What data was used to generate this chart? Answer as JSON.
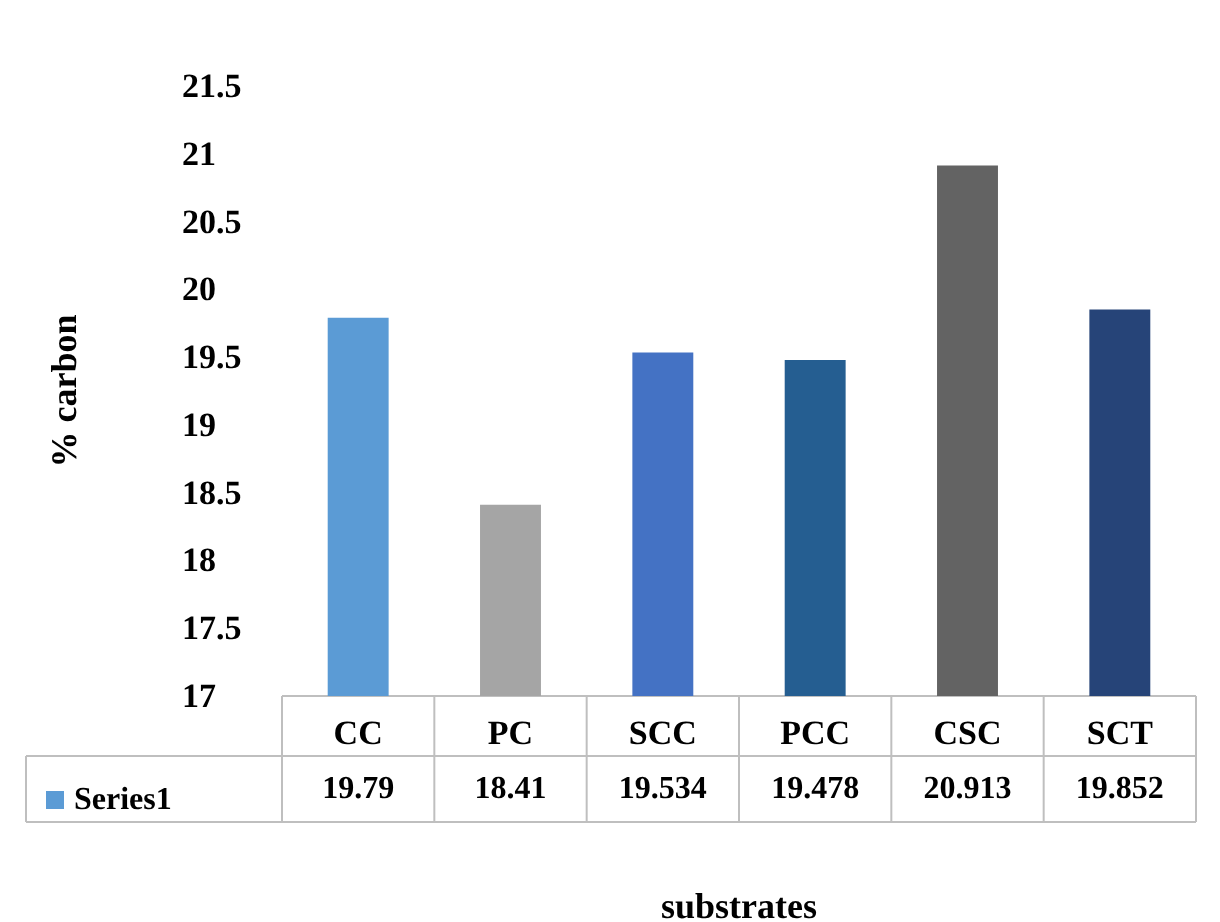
{
  "chart_data": {
    "type": "bar",
    "xlabel": "substrates",
    "ylabel": "% carbon",
    "categories": [
      "CC",
      "PC",
      "SCC",
      "PCC",
      "CSC",
      "SCT"
    ],
    "series": [
      {
        "name": "Series1",
        "color": "#5b9bd5",
        "values": [
          19.79,
          18.41,
          19.534,
          19.478,
          20.913,
          19.852
        ],
        "colors": [
          "#5b9bd5",
          "#a5a5a5",
          "#4472c4",
          "#255e91",
          "#636363",
          "#264478"
        ]
      }
    ],
    "ylim": [
      17,
      21.5
    ],
    "yticks": [
      17,
      17.5,
      18,
      18.5,
      19,
      19.5,
      20,
      20.5,
      21,
      21.5
    ],
    "grid": false,
    "legend": "bottom left",
    "data_labels": true
  }
}
